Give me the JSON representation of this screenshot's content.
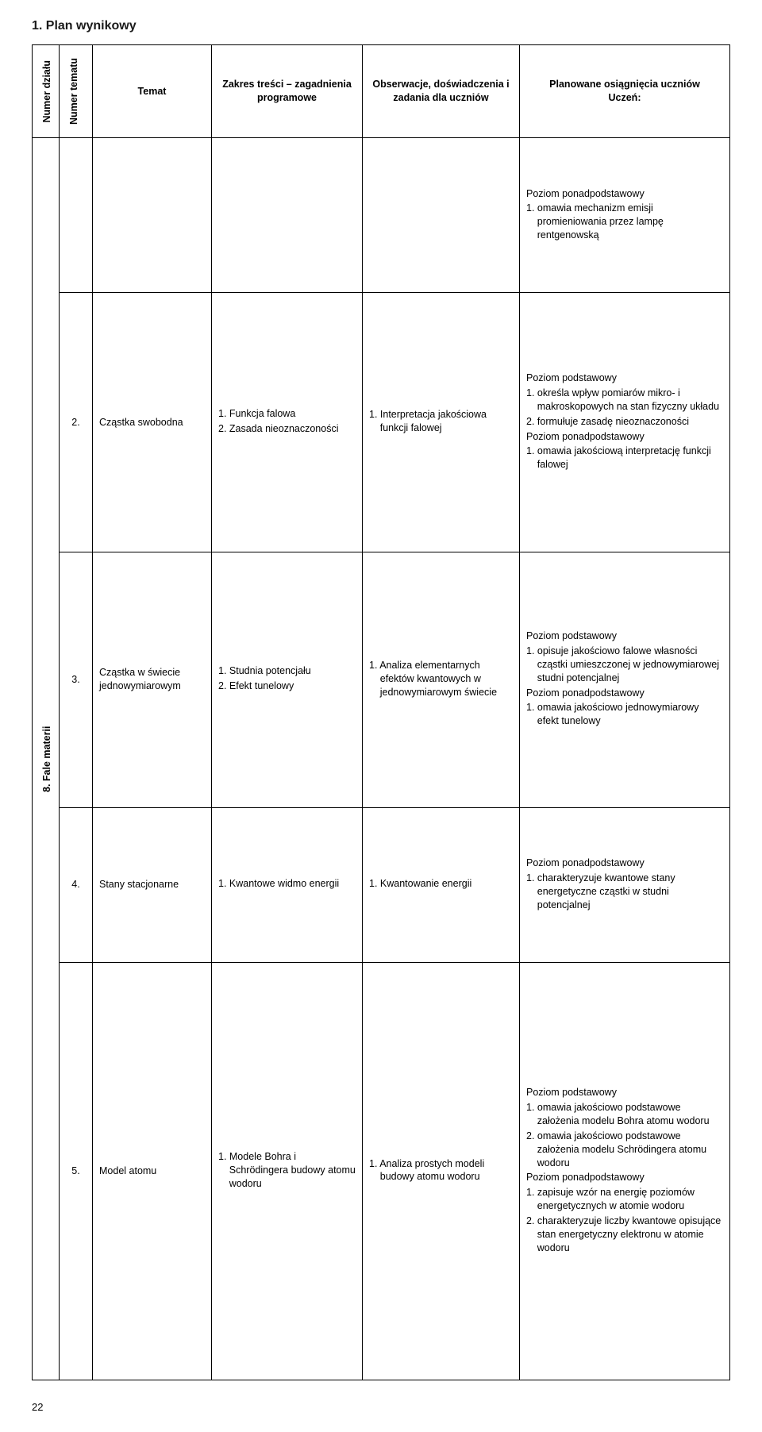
{
  "page_title": "1. Plan wynikowy",
  "page_number": "22",
  "headers": {
    "dzial": "Numer działu",
    "tematu": "Numer tematu",
    "temat": "Temat",
    "zakres": "Zakres treści – zagadnienia programowe",
    "obser": "Obserwacje, doświadczenia i zadania dla uczniów",
    "osiag_l1": "Planowane osiągnięcia uczniów",
    "osiag_l2": "Uczeń:"
  },
  "chapter_label": "8. Fale materii",
  "level_labels": {
    "ponad": "Poziom ponadpodstawowy",
    "podst": "Poziom podstawowy"
  },
  "rows": [
    {
      "num": "",
      "temat": "",
      "zakres": [],
      "obser": [],
      "osiag": [
        {
          "kind": "level",
          "key": "ponad"
        },
        {
          "kind": "item",
          "text": "1. omawia mechanizm emisji promieniowania przez lampę rentgenowską"
        }
      ]
    },
    {
      "num": "2.",
      "temat": "Cząstka swobodna",
      "zakres": [
        "1. Funkcja falowa",
        "2. Zasada nieoznaczoności"
      ],
      "obser": [
        "1. Interpretacja jakościowa funkcji falowej"
      ],
      "osiag": [
        {
          "kind": "level",
          "key": "podst"
        },
        {
          "kind": "item",
          "text": "1. określa wpływ pomiarów mikro- i makroskopowych na stan fizyczny układu"
        },
        {
          "kind": "item",
          "text": "2. formułuje zasadę nieoznaczoności"
        },
        {
          "kind": "level",
          "key": "ponad"
        },
        {
          "kind": "item",
          "text": "1. omawia jakościową interpretację funkcji falowej"
        }
      ]
    },
    {
      "num": "3.",
      "temat": "Cząstka w świecie jednowymiarowym",
      "zakres": [
        "1. Studnia potencjału",
        "2. Efekt tunelowy"
      ],
      "obser": [
        "1. Analiza elementarnych efektów kwantowych w jednowymiarowym świecie"
      ],
      "osiag": [
        {
          "kind": "level",
          "key": "podst"
        },
        {
          "kind": "item",
          "text": "1. opisuje jakościowo falowe własności cząstki umieszczonej w jednowymiarowej studni potencjalnej"
        },
        {
          "kind": "level",
          "key": "ponad"
        },
        {
          "kind": "item",
          "text": "1. omawia jakościowo jednowymiarowy efekt tunelowy"
        }
      ]
    },
    {
      "num": "4.",
      "temat": "Stany stacjonarne",
      "zakres": [
        "1. Kwantowe widmo energii"
      ],
      "obser": [
        "1. Kwantowanie energii"
      ],
      "osiag": [
        {
          "kind": "level",
          "key": "ponad"
        },
        {
          "kind": "item",
          "text": "1. charakteryzuje kwantowe stany energetyczne cząstki w studni potencjalnej"
        }
      ]
    },
    {
      "num": "5.",
      "temat": "Model atomu",
      "zakres": [
        "1. Modele Bohra i Schrödingera budowy atomu wodoru"
      ],
      "obser": [
        "1. Analiza prostych modeli budowy atomu wodoru"
      ],
      "osiag": [
        {
          "kind": "level",
          "key": "podst"
        },
        {
          "kind": "item",
          "text": "1. omawia jakościowo podstawowe założenia modelu Bohra atomu wodoru"
        },
        {
          "kind": "item",
          "text": "2. omawia jakościowo podstawowe założenia modelu Schrödingera atomu wodoru"
        },
        {
          "kind": "level",
          "key": "ponad"
        },
        {
          "kind": "item",
          "text": "1. zapisuje wzór na energię poziomów energetycznych w atomie wodoru"
        },
        {
          "kind": "item",
          "text": "2. charakteryzuje liczby kwantowe opisujące stan energetyczny elektronu w atomie wodoru"
        }
      ]
    }
  ]
}
